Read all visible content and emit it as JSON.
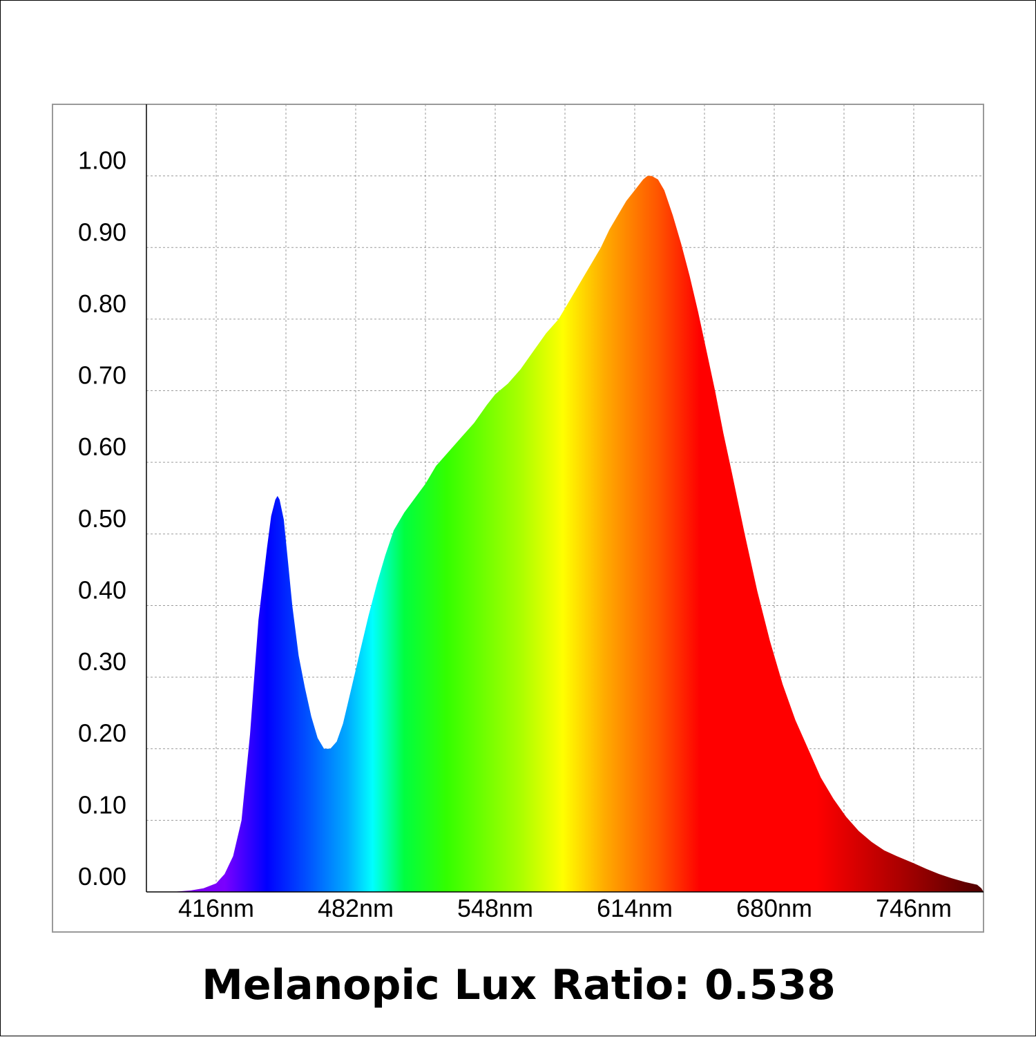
{
  "chart_data": {
    "type": "area",
    "title": "",
    "xlabel": "",
    "ylabel": "",
    "x_unit": "nm",
    "xlim": [
      383,
      779
    ],
    "ylim": [
      0,
      1.1
    ],
    "x_ticks": [
      416,
      482,
      548,
      614,
      680,
      746
    ],
    "x_tick_labels": [
      "416nm",
      "482nm",
      "548nm",
      "614nm",
      "680nm",
      "746nm"
    ],
    "x_grid": [
      416,
      449,
      482,
      515,
      548,
      581,
      614,
      647,
      680,
      713,
      746
    ],
    "y_ticks": [
      0,
      0.1,
      0.2,
      0.3,
      0.4,
      0.5,
      0.6,
      0.7,
      0.8,
      0.9,
      1.0
    ],
    "y_tick_labels": [
      "0.00",
      "0.10",
      "0.20",
      "0.30",
      "0.40",
      "0.50",
      "0.60",
      "0.70",
      "0.80",
      "0.90",
      "1.00"
    ],
    "grid": true,
    "legend": "none",
    "fill": "visible-spectrum-gradient",
    "series": [
      {
        "x": [
          383,
          395,
          404,
          410,
          416,
          420,
          424,
          428,
          432,
          436,
          440,
          442,
          444,
          445,
          446,
          448,
          450,
          452,
          455,
          458,
          461,
          464,
          467,
          470,
          473,
          476,
          478,
          480,
          484,
          488,
          492,
          496,
          500,
          505,
          510,
          515,
          520,
          526,
          532,
          538,
          544,
          548,
          554,
          560,
          566,
          572,
          578,
          581,
          586,
          590,
          594,
          598,
          602,
          606,
          610,
          614,
          618,
          620,
          622,
          625,
          628,
          632,
          636,
          640,
          644,
          648,
          652,
          656,
          660,
          666,
          672,
          678,
          684,
          690,
          696,
          702,
          708,
          714,
          720,
          726,
          732,
          738,
          746,
          752,
          758,
          764,
          770,
          776,
          778,
          779
        ],
        "y": [
          0.0,
          0.0,
          0.002,
          0.005,
          0.012,
          0.025,
          0.05,
          0.1,
          0.22,
          0.38,
          0.48,
          0.525,
          0.548,
          0.553,
          0.548,
          0.52,
          0.46,
          0.4,
          0.33,
          0.285,
          0.245,
          0.215,
          0.2,
          0.2,
          0.21,
          0.235,
          0.26,
          0.285,
          0.335,
          0.385,
          0.43,
          0.47,
          0.505,
          0.53,
          0.55,
          0.57,
          0.595,
          0.615,
          0.635,
          0.655,
          0.68,
          0.695,
          0.71,
          0.73,
          0.755,
          0.78,
          0.8,
          0.815,
          0.84,
          0.86,
          0.88,
          0.9,
          0.925,
          0.945,
          0.965,
          0.98,
          0.995,
          1.0,
          1.0,
          0.995,
          0.98,
          0.945,
          0.905,
          0.86,
          0.81,
          0.755,
          0.7,
          0.64,
          0.585,
          0.5,
          0.42,
          0.35,
          0.29,
          0.24,
          0.2,
          0.16,
          0.13,
          0.105,
          0.085,
          0.07,
          0.058,
          0.05,
          0.04,
          0.032,
          0.025,
          0.019,
          0.014,
          0.01,
          0.005,
          0.0
        ]
      }
    ]
  },
  "caption": "Melanopic Lux Ratio: 0.538",
  "colors": {
    "axis": "#000000",
    "grid": "#9a9a9a",
    "plot_border": "#999999",
    "background": "#ffffff",
    "spectrum_stops": [
      {
        "nm": 383,
        "color": "#8000d0"
      },
      {
        "nm": 420,
        "color": "#7a00ff"
      },
      {
        "nm": 440,
        "color": "#0000ff"
      },
      {
        "nm": 460,
        "color": "#0055ff"
      },
      {
        "nm": 478,
        "color": "#00aaff"
      },
      {
        "nm": 490,
        "color": "#00ffff"
      },
      {
        "nm": 505,
        "color": "#00ff40"
      },
      {
        "nm": 525,
        "color": "#33ff00"
      },
      {
        "nm": 560,
        "color": "#aaff00"
      },
      {
        "nm": 580,
        "color": "#ffff00"
      },
      {
        "nm": 600,
        "color": "#ffaa00"
      },
      {
        "nm": 625,
        "color": "#ff5500"
      },
      {
        "nm": 645,
        "color": "#ff0000"
      },
      {
        "nm": 700,
        "color": "#ff0000"
      },
      {
        "nm": 740,
        "color": "#aa0000"
      },
      {
        "nm": 779,
        "color": "#4d0000"
      }
    ]
  }
}
